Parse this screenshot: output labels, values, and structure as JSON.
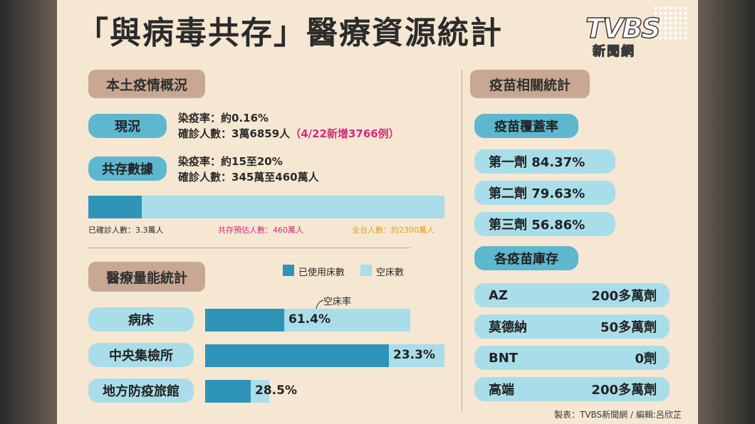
{
  "title": "「與病毒共存」醫療資源統計",
  "logo": {
    "main": "TVBS",
    "sub": "新聞網"
  },
  "local": {
    "heading": "本土疫情概況",
    "current": {
      "label": "現況",
      "rate": "染疫率：約0.16%",
      "cases": "確診人數：3萬6859人",
      "new": "（4/22新增3766例）"
    },
    "coexist": {
      "label": "共存數據",
      "rate": "染疫率：約15至20%",
      "cases": "確診人數：345萬至460萬人"
    },
    "bar": {
      "confirmed_label": "已確診人數：3.3萬人",
      "projected_label": "共存預估人數：460萬人",
      "total_label": "全台人數：約2300萬人",
      "colors": {
        "confirmed": "#d62b7c",
        "projected": "#d62b7c",
        "total": "#e0a020"
      }
    }
  },
  "medical": {
    "heading": "醫療量能統計",
    "legend": {
      "used": "已使用床數",
      "empty": "空床數"
    },
    "annotation": "空床率",
    "rows": [
      {
        "label": "病床",
        "value_text": "61.4%"
      },
      {
        "label": "中央集檢所",
        "value_text": "23.3%"
      },
      {
        "label": "地方防疫旅館",
        "value_text": "28.5%"
      }
    ]
  },
  "vaccine": {
    "heading": "疫苗相關統計",
    "coverage_heading": "疫苗覆蓋率",
    "coverage": [
      {
        "label": "第一劑 84.37%"
      },
      {
        "label": "第二劑 79.63%"
      },
      {
        "label": "第三劑 56.86%"
      }
    ],
    "stock_heading": "各疫苗庫存",
    "stock": [
      {
        "name": "AZ",
        "amount": "200多萬劑"
      },
      {
        "name": "莫德納",
        "amount": "50多萬劑"
      },
      {
        "name": "BNT",
        "amount": "0劑"
      },
      {
        "name": "高端",
        "amount": "200多萬劑"
      }
    ]
  },
  "credit": "製表：TVBS新聞網 / 編輯:呂欣芷",
  "chart_data": [
    {
      "type": "bar",
      "categories": [
        "已確診人數",
        "共存預估人數",
        "全台人數"
      ],
      "values": [
        33000,
        4600000,
        23000000
      ],
      "colors": [
        "#2e95b8",
        "#a9dde9",
        "#a9dde9"
      ]
    },
    {
      "type": "bar",
      "categories": [
        "病床",
        "中央集檢所",
        "地方防疫旅館"
      ],
      "series": [
        {
          "name": "已使用床數",
          "values": [
            38.6,
            76.7,
            71.5
          ],
          "color": "#2e95b8"
        },
        {
          "name": "空床數",
          "values": [
            61.4,
            23.3,
            28.5
          ],
          "color": "#a9dde9"
        }
      ],
      "annotation": "空床率"
    },
    {
      "type": "bar",
      "categories": [
        "第一劑",
        "第二劑",
        "第三劑"
      ],
      "values": [
        84.37,
        79.63,
        56.86
      ]
    }
  ]
}
